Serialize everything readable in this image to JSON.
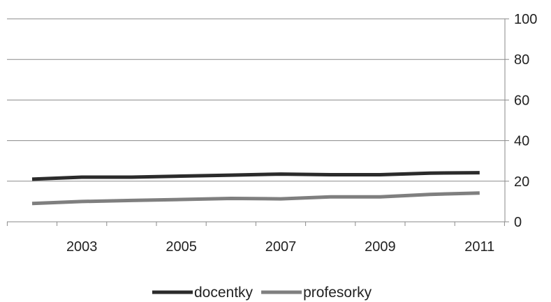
{
  "chart_data": {
    "type": "line",
    "title": "",
    "xlabel": "",
    "ylabel": "",
    "x": [
      2002,
      2003,
      2004,
      2005,
      2006,
      2007,
      2008,
      2009,
      2010,
      2011
    ],
    "x_tick_labels": [
      "2003",
      "2005",
      "2007",
      "2009",
      "2011"
    ],
    "y_tick_labels": [
      "0",
      "20",
      "40",
      "60",
      "80",
      "100"
    ],
    "ylim": [
      0,
      100
    ],
    "y_axis_side": "right",
    "grid": "horizontal",
    "legend_position": "bottom",
    "series": [
      {
        "name": "docentky",
        "color": "#2b2b2b",
        "values": [
          21,
          22,
          22,
          22.5,
          23,
          23.5,
          23.2,
          23.2,
          24,
          24.2
        ]
      },
      {
        "name": "profesorky",
        "color": "#7f7f7f",
        "values": [
          9,
          10,
          10.5,
          11,
          11.5,
          11.3,
          12.3,
          12.3,
          13.5,
          14.2
        ]
      }
    ]
  }
}
